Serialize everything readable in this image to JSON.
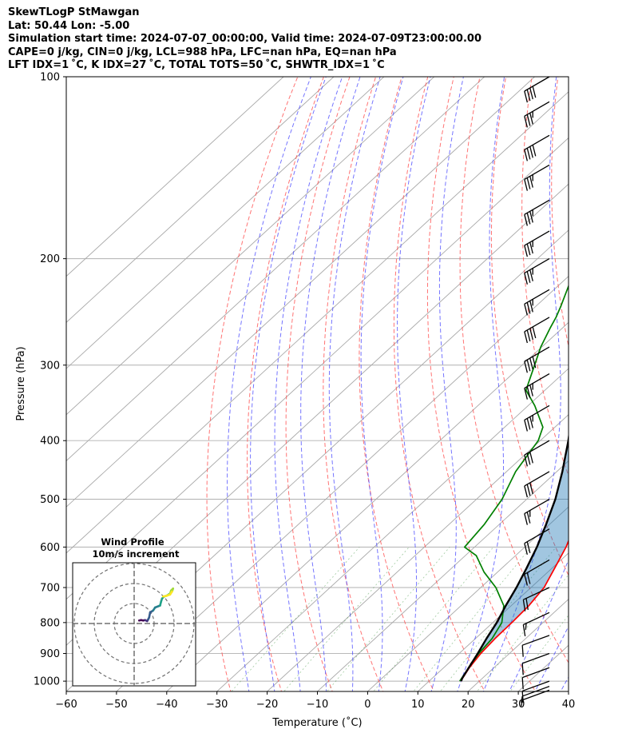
{
  "header": {
    "line1": "SkewTLogP StMawgan",
    "line2": "Lat: 50.44   Lon: -5.00",
    "line3": "Simulation start time: 2024-07-07_00:00:00, Valid time: 2024-07-09T23:00:00.00",
    "line4": "CAPE=0 j/kg, CIN=0 j/kg, LCL=988 hPa, LFC=nan hPa, EQ=nan hPa",
    "line5": "LFT IDX=1 ˚C, K IDX=27 ˚C, TOTAL TOTS=50 ˚C, SHWTR_IDX=1 ˚C"
  },
  "chart_data": {
    "type": "line",
    "subtype": "skew-t log-p",
    "xlabel": "Temperature (˚C)",
    "ylabel": "Pressure (hPa)",
    "xlim": [
      -60,
      40
    ],
    "ylim": [
      1040,
      100
    ],
    "yscale": "log",
    "xticks": [
      -60,
      -50,
      -40,
      -30,
      -20,
      -10,
      0,
      10,
      20,
      30,
      40
    ],
    "yticks": [
      100,
      200,
      300,
      400,
      500,
      600,
      700,
      800,
      900,
      1000
    ],
    "grid": true,
    "series": [
      {
        "role": "temperature",
        "color": "#ff0000",
        "points": [
          [
            1000,
            16.3
          ],
          [
            950,
            15.1
          ],
          [
            900,
            14.3
          ],
          [
            850,
            13.9
          ],
          [
            800,
            13.8
          ],
          [
            750,
            13.5
          ],
          [
            700,
            12.6
          ],
          [
            650,
            10.5
          ],
          [
            600,
            8.2
          ],
          [
            550,
            5.1
          ],
          [
            500,
            1.5
          ],
          [
            450,
            -3.3
          ],
          [
            400,
            -8.6
          ],
          [
            350,
            -14.7
          ],
          [
            300,
            -22.7
          ],
          [
            275,
            -27.8
          ],
          [
            250,
            -33.2
          ],
          [
            225,
            -38.6
          ],
          [
            200,
            -43.0
          ],
          [
            175,
            -47.0
          ],
          [
            150,
            -52.1
          ],
          [
            125,
            -58.0
          ],
          [
            110,
            -63.1
          ],
          [
            100,
            -66.2
          ]
        ]
      },
      {
        "role": "dewpoint",
        "color": "#008000",
        "points": [
          [
            1000,
            16.1
          ],
          [
            950,
            15.0
          ],
          [
            900,
            13.9
          ],
          [
            850,
            13.3
          ],
          [
            800,
            11.8
          ],
          [
            750,
            8.5
          ],
          [
            700,
            3.0
          ],
          [
            660,
            -2.7
          ],
          [
            620,
            -7.8
          ],
          [
            600,
            -12.0
          ],
          [
            550,
            -13.0
          ],
          [
            500,
            -14.9
          ],
          [
            450,
            -18.2
          ],
          [
            420,
            -19.5
          ],
          [
            400,
            -20.4
          ],
          [
            380,
            -22.4
          ],
          [
            350,
            -28.7
          ],
          [
            330,
            -33.8
          ],
          [
            300,
            -37.5
          ],
          [
            280,
            -40.2
          ],
          [
            260,
            -42.5
          ],
          [
            250,
            -43.6
          ],
          [
            240,
            -45.0
          ],
          [
            220,
            -48.2
          ],
          [
            200,
            -51.0
          ],
          [
            180,
            -54.6
          ],
          [
            177,
            -55.0
          ],
          [
            150,
            -55.0
          ],
          [
            125,
            -56.0
          ],
          [
            100,
            -57.6
          ]
        ]
      },
      {
        "role": "parcel",
        "color": "#000000",
        "points": [
          [
            1000,
            16.4
          ],
          [
            990,
            16.0
          ],
          [
            950,
            15.0
          ],
          [
            900,
            13.7
          ],
          [
            850,
            12.2
          ],
          [
            800,
            10.8
          ],
          [
            750,
            8.9
          ],
          [
            700,
            7.1
          ],
          [
            650,
            4.9
          ],
          [
            600,
            2.4
          ],
          [
            550,
            -0.7
          ],
          [
            500,
            -4.3
          ],
          [
            450,
            -8.9
          ],
          [
            400,
            -14.4
          ],
          [
            350,
            -21.1
          ],
          [
            300,
            -29.5
          ],
          [
            250,
            -40.1
          ],
          [
            200,
            -53.3
          ],
          [
            175,
            -61.0
          ],
          [
            150,
            -69.0
          ],
          [
            125,
            -78.3
          ],
          [
            110,
            -84.5
          ],
          [
            100,
            -89.0
          ]
        ]
      }
    ],
    "barbs": [
      {
        "p": 100,
        "speed": 40,
        "dir": 240
      },
      {
        "p": 110,
        "speed": 35,
        "dir": 240
      },
      {
        "p": 125,
        "speed": 40,
        "dir": 240
      },
      {
        "p": 140,
        "speed": 35,
        "dir": 240
      },
      {
        "p": 160,
        "speed": 35,
        "dir": 240
      },
      {
        "p": 180,
        "speed": 35,
        "dir": 240
      },
      {
        "p": 200,
        "speed": 35,
        "dir": 240
      },
      {
        "p": 225,
        "speed": 35,
        "dir": 240
      },
      {
        "p": 250,
        "speed": 40,
        "dir": 240
      },
      {
        "p": 280,
        "speed": 40,
        "dir": 240
      },
      {
        "p": 310,
        "speed": 35,
        "dir": 240
      },
      {
        "p": 350,
        "speed": 35,
        "dir": 240
      },
      {
        "p": 400,
        "speed": 30,
        "dir": 240
      },
      {
        "p": 450,
        "speed": 30,
        "dir": 240
      },
      {
        "p": 500,
        "speed": 25,
        "dir": 240
      },
      {
        "p": 560,
        "speed": 20,
        "dir": 240
      },
      {
        "p": 630,
        "speed": 20,
        "dir": 240
      },
      {
        "p": 700,
        "speed": 20,
        "dir": 245
      },
      {
        "p": 770,
        "speed": 15,
        "dir": 245
      },
      {
        "p": 840,
        "speed": 10,
        "dir": 250
      },
      {
        "p": 900,
        "speed": 10,
        "dir": 250
      },
      {
        "p": 950,
        "speed": 10,
        "dir": 250
      },
      {
        "p": 1000,
        "speed": 10,
        "dir": 250
      },
      {
        "p": 1020,
        "speed": 5,
        "dir": 250
      },
      {
        "p": 1035,
        "speed": 5,
        "dir": 250
      }
    ],
    "hodograph": {
      "title": "Wind Profile",
      "subtitle": "10m/s increment",
      "ring_step": 10,
      "range": 30,
      "colormap": "viridis",
      "uv": [
        [
          2.5,
          1.5
        ],
        [
          3.5,
          1.7
        ],
        [
          4.5,
          1.5
        ],
        [
          5.5,
          1.7
        ],
        [
          6.5,
          1.2
        ],
        [
          7.0,
          2.0
        ],
        [
          7.5,
          3.0
        ],
        [
          8.0,
          5.5
        ],
        [
          9.5,
          6.5
        ],
        [
          10.5,
          8.0
        ],
        [
          13.0,
          9.0
        ],
        [
          13.5,
          11.0
        ],
        [
          14.0,
          12.5
        ],
        [
          15.0,
          13.5
        ],
        [
          16.5,
          14.0
        ],
        [
          18.0,
          15.0
        ],
        [
          18.5,
          16.5
        ],
        [
          19.5,
          17.5
        ],
        [
          19.0,
          16.0
        ],
        [
          18.0,
          14.5
        ],
        [
          16.0,
          13.8
        ],
        [
          14.5,
          13.5
        ]
      ]
    }
  }
}
